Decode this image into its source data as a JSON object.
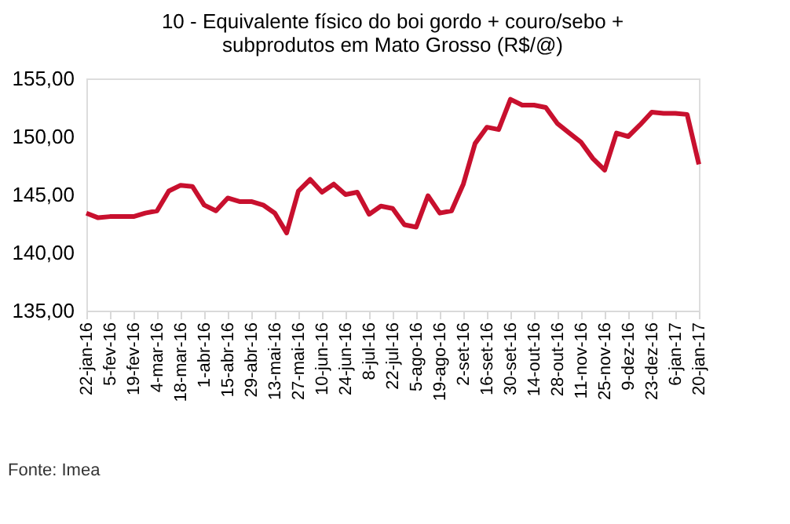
{
  "chart_data": {
    "type": "line",
    "title": [
      "10 - Equivalente físico do boi gordo + couro/sebo +",
      "subprodutos em Mato Grosso (R$/@)"
    ],
    "categories": [
      "22-jan-16",
      null,
      "5-fev-16",
      null,
      "19-fev-16",
      null,
      "4-mar-16",
      null,
      "18-mar-16",
      null,
      "1-abr-16",
      null,
      "15-abr-16",
      null,
      "29-abr-16",
      null,
      "13-mai-16",
      null,
      "27-mai-16",
      null,
      "10-jun-16",
      null,
      "24-jun-16",
      null,
      "8-jul-16",
      null,
      "22-jul-16",
      null,
      "5-ago-16",
      null,
      "19-ago-16",
      null,
      "2-set-16",
      null,
      "16-set-16",
      null,
      "30-set-16",
      null,
      "14-out-16",
      null,
      "28-out-16",
      null,
      "11-nov-16",
      null,
      "25-nov-16",
      null,
      "9-dez-16",
      null,
      "23-dez-16",
      null,
      "6-jan-17",
      null,
      "20-jan-17"
    ],
    "series": [
      {
        "color": "#c8102e",
        "values": [
          143.4,
          143.0,
          143.1,
          143.1,
          143.1,
          143.4,
          143.6,
          145.3,
          145.8,
          145.7,
          144.1,
          143.6,
          144.7,
          144.4,
          144.4,
          144.1,
          143.4,
          141.7,
          145.3,
          146.3,
          145.2,
          145.9,
          145.0,
          145.2,
          143.3,
          144.0,
          143.8,
          142.4,
          142.2,
          144.9,
          143.4,
          143.6,
          145.9,
          149.4,
          150.8,
          150.6,
          153.2,
          152.7,
          152.7,
          152.5,
          151.1,
          150.3,
          149.5,
          148.1,
          147.1,
          150.3,
          150.0,
          151.0,
          152.1,
          152.0,
          152.0,
          151.9,
          147.6
        ]
      }
    ],
    "ylim": [
      135,
      155
    ],
    "yticks": [
      {
        "value": 135,
        "label": "135,00"
      },
      {
        "value": 140,
        "label": "140,00"
      },
      {
        "value": 145,
        "label": "145,00"
      },
      {
        "value": 150,
        "label": "150,00"
      },
      {
        "value": 155,
        "label": "155,00"
      }
    ],
    "grid": false,
    "marker": "none",
    "line_style": "solid",
    "annotations": [
      "Fonte: Imea"
    ]
  }
}
